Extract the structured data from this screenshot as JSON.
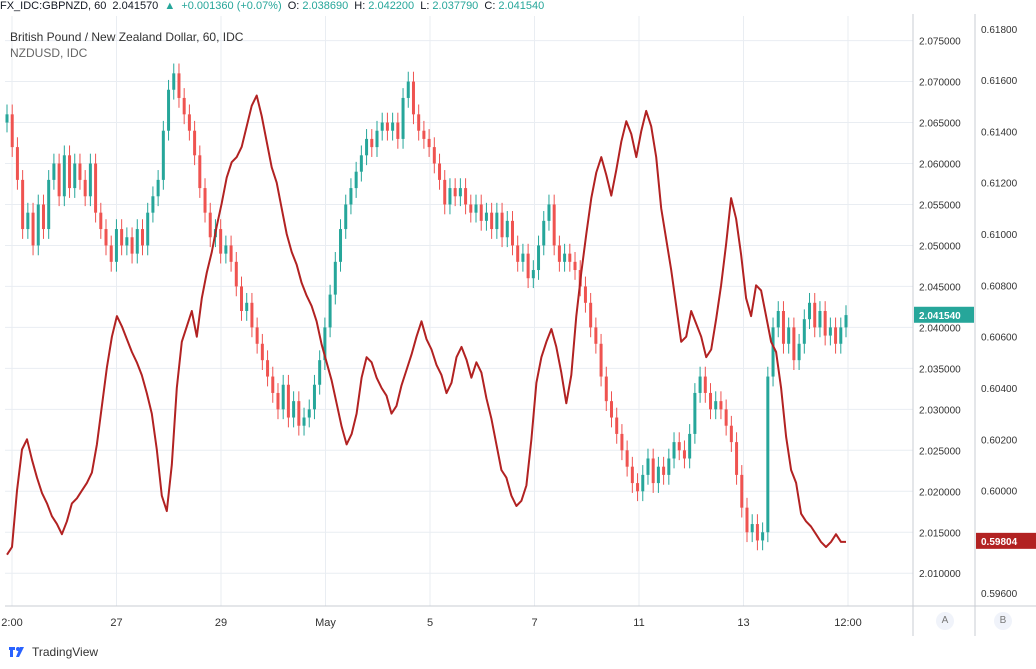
{
  "header": {
    "symbol": "FX_IDC:GBPNZD, 60",
    "last": "2.041570",
    "change": "+0.001360 (+0.07%)",
    "o_label": "O:",
    "o": "2.038690",
    "h_label": "H:",
    "h": "2.042200",
    "l_label": "L:",
    "l": "2.037790",
    "c_label": "C:",
    "c": "2.041540"
  },
  "chart_title": "British Pound / New Zealand Dollar, 60, IDC",
  "chart_subtitle": "NZDUSD, IDC",
  "footer": {
    "brand": "TradingView",
    "scale_a": "A",
    "scale_b": "B"
  },
  "colors": {
    "up": "#26a69a",
    "down": "#ef5350",
    "nzd_line": "#b22222",
    "grid": "#e9edf2"
  },
  "chart_data": {
    "type": "candlestick+line",
    "title": "British Pound / New Zealand Dollar, 60, IDC",
    "x_ticks": [
      "2:00",
      "27",
      "29",
      "May",
      "5",
      "7",
      "11",
      "13",
      "12:00"
    ],
    "y_axis_a": {
      "ylim": [
        2.006,
        2.078
      ],
      "ticks": [
        "2.075000",
        "2.070000",
        "2.065000",
        "2.060000",
        "2.055000",
        "2.050000",
        "2.045000",
        "2.040000",
        "2.035000",
        "2.030000",
        "2.025000",
        "2.020000",
        "2.015000",
        "2.010000"
      ],
      "last_value_label": "2.041540"
    },
    "y_axis_b": {
      "ylim": [
        0.5955,
        0.6185
      ],
      "ticks": [
        "0.61800",
        "0.61600",
        "0.61400",
        "0.61200",
        "0.61000",
        "0.60800",
        "0.60600",
        "0.60400",
        "0.60200",
        "0.60000",
        "0.59800",
        "0.59600"
      ],
      "last_value_label": "0.59804"
    },
    "series": [
      {
        "name": "GBPNZD",
        "kind": "close_path",
        "values": [
          2.066,
          2.062,
          2.058,
          2.052,
          2.054,
          2.05,
          2.055,
          2.052,
          2.058,
          2.06,
          2.056,
          2.061,
          2.057,
          2.06,
          2.058,
          2.056,
          2.06,
          2.054,
          2.052,
          2.05,
          2.048,
          2.052,
          2.05,
          2.051,
          2.049,
          2.052,
          2.05,
          2.054,
          2.056,
          2.058,
          2.064,
          2.069,
          2.071,
          2.068,
          2.066,
          2.064,
          2.061,
          2.057,
          2.054,
          2.051,
          2.052,
          2.049,
          2.05,
          2.048,
          2.045,
          2.042,
          2.043,
          2.04,
          2.038,
          2.036,
          2.034,
          2.032,
          2.03,
          2.033,
          2.029,
          2.031,
          2.028,
          2.029,
          2.03,
          2.033,
          2.036,
          2.04,
          2.044,
          2.048,
          2.052,
          2.055,
          2.057,
          2.059,
          2.061,
          2.063,
          2.062,
          2.064,
          2.065,
          2.064,
          2.065,
          2.063,
          2.068,
          2.07,
          2.066,
          2.064,
          2.063,
          2.062,
          2.06,
          2.058,
          2.055,
          2.057,
          2.056,
          2.057,
          2.055,
          2.054,
          2.055,
          2.053,
          2.054,
          2.052,
          2.054,
          2.051,
          2.053,
          2.05,
          2.048,
          2.049,
          2.046,
          2.047,
          2.05,
          2.053,
          2.055,
          2.05,
          2.048,
          2.049,
          2.048,
          2.047,
          2.045,
          2.043,
          2.04,
          2.038,
          2.034,
          2.031,
          2.029,
          2.027,
          2.025,
          2.023,
          2.021,
          2.02,
          2.022,
          2.024,
          2.021,
          2.023,
          2.022,
          2.024,
          2.026,
          2.025,
          2.024,
          2.027,
          2.032,
          2.034,
          2.032,
          2.03,
          2.031,
          2.03,
          2.028,
          2.026,
          2.022,
          2.018,
          2.015,
          2.016,
          2.014,
          2.015,
          2.034,
          2.04,
          2.042,
          2.038,
          2.04,
          2.036,
          2.038,
          2.041,
          2.043,
          2.04,
          2.042,
          2.039,
          2.04,
          2.038,
          2.04,
          2.0415
        ]
      },
      {
        "name": "NZDUSD",
        "kind": "line",
        "values": [
          0.5975,
          0.5978,
          0.6,
          0.6016,
          0.602,
          0.6012,
          0.6005,
          0.5999,
          0.5995,
          0.599,
          0.5987,
          0.5983,
          0.5988,
          0.5995,
          0.5997,
          0.6,
          0.6003,
          0.6007,
          0.6018,
          0.6033,
          0.6048,
          0.606,
          0.6068,
          0.6064,
          0.6059,
          0.6054,
          0.605,
          0.6045,
          0.6038,
          0.603,
          0.6016,
          0.5998,
          0.5992,
          0.601,
          0.604,
          0.6058,
          0.6064,
          0.607,
          0.606,
          0.6075,
          0.6085,
          0.6093,
          0.6103,
          0.6112,
          0.6122,
          0.6128,
          0.613,
          0.6134,
          0.6142,
          0.615,
          0.6154,
          0.6146,
          0.6136,
          0.6126,
          0.612,
          0.611,
          0.61,
          0.6093,
          0.6088,
          0.6081,
          0.6076,
          0.6072,
          0.6066,
          0.6057,
          0.605,
          0.6043,
          0.6034,
          0.6025,
          0.6018,
          0.6022,
          0.603,
          0.6044,
          0.6052,
          0.605,
          0.6044,
          0.604,
          0.6037,
          0.603,
          0.6033,
          0.6041,
          0.6047,
          0.6053,
          0.606,
          0.6066,
          0.6059,
          0.6055,
          0.6049,
          0.6045,
          0.6038,
          0.6042,
          0.6052,
          0.6056,
          0.6051,
          0.6044,
          0.605,
          0.6046,
          0.6036,
          0.6028,
          0.6018,
          0.6008,
          0.6005,
          0.5998,
          0.5994,
          0.5996,
          0.6002,
          0.602,
          0.6042,
          0.6052,
          0.6058,
          0.6063,
          0.6056,
          0.6046,
          0.6034,
          0.6045,
          0.6068,
          0.6085,
          0.61,
          0.6114,
          0.6124,
          0.613,
          0.6123,
          0.6115,
          0.6125,
          0.6136,
          0.6144,
          0.6139,
          0.613,
          0.614,
          0.6148,
          0.6142,
          0.613,
          0.611,
          0.6098,
          0.6086,
          0.6072,
          0.6058,
          0.606,
          0.607,
          0.6065,
          0.606,
          0.6052,
          0.6055,
          0.6067,
          0.608,
          0.6096,
          0.6114,
          0.6106,
          0.6092,
          0.6075,
          0.6068,
          0.608,
          0.6078,
          0.6068,
          0.6058,
          0.6054,
          0.604,
          0.6021,
          0.6008,
          0.6003,
          0.5991,
          0.5988,
          0.5986,
          0.5983,
          0.598,
          0.5978,
          0.598,
          0.5983,
          0.598,
          0.598
        ]
      }
    ]
  }
}
